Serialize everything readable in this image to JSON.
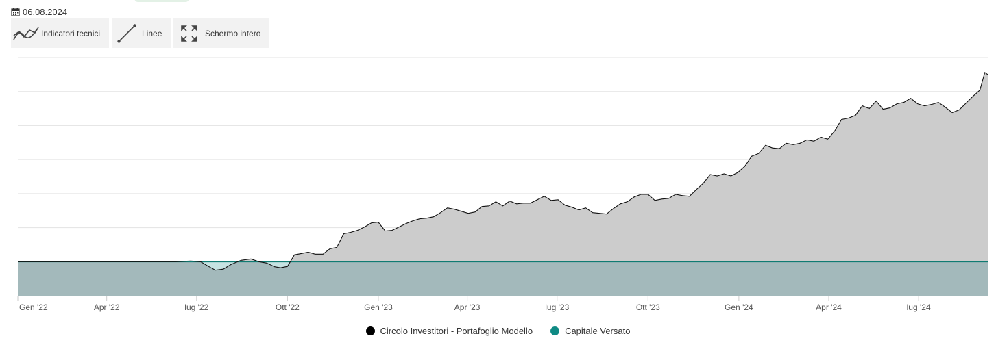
{
  "date": "06.08.2024",
  "toolbar": {
    "indicators_label": "Indicatori tecnici",
    "lines_label": "Linee",
    "fullscreen_label": "Schermo intero"
  },
  "colors": {
    "portfolio_line": "#111111",
    "portfolio_fill": "#cccccc",
    "capital_line": "#0f7b72",
    "capital_fill": "#a3b9bb",
    "below_fill": "#c6e3e2",
    "grid": "#e3e3e3"
  },
  "legend": {
    "portfolio_label": "Circolo Investitori - Portafoglio Modello",
    "portfolio_color": "#000000",
    "capital_label": "Capitale Versato",
    "capital_color": "#0f8a84"
  },
  "chart_data": {
    "type": "area",
    "x_ticks": [
      "Gen '22",
      "Apr '22",
      "lug '22",
      "Ott '22",
      "Gen '23",
      "Apr '23",
      "lug '23",
      "Ott '23",
      "Gen '24",
      "Apr '24",
      "lug '24"
    ],
    "grid": true,
    "y_tick_labels_visible": false,
    "ylim": [
      -1,
      6
    ],
    "legend_position": "bottom-center",
    "series": [
      {
        "name": "Circolo Investitori - Portafoglio Modello",
        "type": "area",
        "points": [
          [
            "2022-01-01",
            0
          ],
          [
            "2022-02-15",
            0
          ],
          [
            "2022-03-20",
            0
          ],
          [
            "2022-05-01",
            0
          ],
          [
            "2022-06-10",
            0
          ],
          [
            "2022-06-25",
            0.02
          ],
          [
            "2022-07-05",
            0.0
          ],
          [
            "2022-07-12",
            -0.12
          ],
          [
            "2022-07-20",
            -0.25
          ],
          [
            "2022-07-28",
            -0.22
          ],
          [
            "2022-08-05",
            -0.08
          ],
          [
            "2022-08-15",
            0.04
          ],
          [
            "2022-08-25",
            0.08
          ],
          [
            "2022-09-02",
            0.0
          ],
          [
            "2022-09-10",
            -0.04
          ],
          [
            "2022-09-18",
            -0.15
          ],
          [
            "2022-09-24",
            -0.18
          ],
          [
            "2022-10-01",
            -0.14
          ],
          [
            "2022-10-08",
            0.2
          ],
          [
            "2022-10-15",
            0.24
          ],
          [
            "2022-10-22",
            0.28
          ],
          [
            "2022-10-29",
            0.22
          ],
          [
            "2022-11-06",
            0.22
          ],
          [
            "2022-11-13",
            0.38
          ],
          [
            "2022-11-20",
            0.42
          ],
          [
            "2022-11-27",
            0.82
          ],
          [
            "2022-12-04",
            0.86
          ],
          [
            "2022-12-11",
            0.92
          ],
          [
            "2022-12-18",
            1.02
          ],
          [
            "2022-12-25",
            1.14
          ],
          [
            "2023-01-01",
            1.16
          ],
          [
            "2023-01-08",
            0.9
          ],
          [
            "2023-01-15",
            0.92
          ],
          [
            "2023-01-22",
            1.02
          ],
          [
            "2023-01-29",
            1.12
          ],
          [
            "2023-02-05",
            1.2
          ],
          [
            "2023-02-12",
            1.26
          ],
          [
            "2023-02-19",
            1.28
          ],
          [
            "2023-02-26",
            1.32
          ],
          [
            "2023-03-05",
            1.44
          ],
          [
            "2023-03-12",
            1.58
          ],
          [
            "2023-03-19",
            1.54
          ],
          [
            "2023-03-26",
            1.48
          ],
          [
            "2023-04-02",
            1.42
          ],
          [
            "2023-04-09",
            1.46
          ],
          [
            "2023-04-16",
            1.62
          ],
          [
            "2023-04-23",
            1.64
          ],
          [
            "2023-04-30",
            1.76
          ],
          [
            "2023-05-07",
            1.64
          ],
          [
            "2023-05-14",
            1.78
          ],
          [
            "2023-05-21",
            1.7
          ],
          [
            "2023-05-28",
            1.72
          ],
          [
            "2023-06-04",
            1.72
          ],
          [
            "2023-06-11",
            1.82
          ],
          [
            "2023-06-18",
            1.92
          ],
          [
            "2023-06-25",
            1.8
          ],
          [
            "2023-07-02",
            1.82
          ],
          [
            "2023-07-09",
            1.66
          ],
          [
            "2023-07-16",
            1.6
          ],
          [
            "2023-07-23",
            1.52
          ],
          [
            "2023-07-30",
            1.58
          ],
          [
            "2023-08-06",
            1.44
          ],
          [
            "2023-08-13",
            1.42
          ],
          [
            "2023-08-20",
            1.4
          ],
          [
            "2023-08-27",
            1.56
          ],
          [
            "2023-09-03",
            1.7
          ],
          [
            "2023-09-10",
            1.76
          ],
          [
            "2023-09-17",
            1.9
          ],
          [
            "2023-09-24",
            1.98
          ],
          [
            "2023-10-01",
            1.98
          ],
          [
            "2023-10-08",
            1.8
          ],
          [
            "2023-10-15",
            1.84
          ],
          [
            "2023-10-22",
            1.86
          ],
          [
            "2023-10-29",
            1.98
          ],
          [
            "2023-11-05",
            1.94
          ],
          [
            "2023-11-12",
            1.92
          ],
          [
            "2023-11-19",
            2.12
          ],
          [
            "2023-11-26",
            2.3
          ],
          [
            "2023-12-03",
            2.56
          ],
          [
            "2023-12-10",
            2.52
          ],
          [
            "2023-12-17",
            2.58
          ],
          [
            "2023-12-24",
            2.52
          ],
          [
            "2023-12-31",
            2.62
          ],
          [
            "2024-01-07",
            2.8
          ],
          [
            "2024-01-14",
            3.1
          ],
          [
            "2024-01-21",
            3.18
          ],
          [
            "2024-01-28",
            3.42
          ],
          [
            "2024-02-04",
            3.34
          ],
          [
            "2024-02-11",
            3.32
          ],
          [
            "2024-02-18",
            3.48
          ],
          [
            "2024-02-25",
            3.44
          ],
          [
            "2024-03-03",
            3.48
          ],
          [
            "2024-03-10",
            3.58
          ],
          [
            "2024-03-17",
            3.54
          ],
          [
            "2024-03-24",
            3.66
          ],
          [
            "2024-03-31",
            3.6
          ],
          [
            "2024-04-07",
            3.84
          ],
          [
            "2024-04-14",
            4.18
          ],
          [
            "2024-04-21",
            4.22
          ],
          [
            "2024-04-28",
            4.3
          ],
          [
            "2024-05-05",
            4.58
          ],
          [
            "2024-05-12",
            4.5
          ],
          [
            "2024-05-19",
            4.72
          ],
          [
            "2024-05-26",
            4.48
          ],
          [
            "2024-06-02",
            4.52
          ],
          [
            "2024-06-09",
            4.64
          ],
          [
            "2024-06-16",
            4.68
          ],
          [
            "2024-06-23",
            4.8
          ],
          [
            "2024-06-30",
            4.64
          ],
          [
            "2024-07-07",
            4.58
          ],
          [
            "2024-07-14",
            4.62
          ],
          [
            "2024-07-21",
            4.68
          ],
          [
            "2024-07-28",
            4.54
          ],
          [
            "2024-08-04",
            4.38
          ],
          [
            "2024-08-11",
            4.46
          ],
          [
            "2024-08-18",
            4.66
          ],
          [
            "2024-08-25",
            4.86
          ],
          [
            "2024-09-01",
            5.04
          ],
          [
            "2024-09-06",
            5.56
          ],
          [
            "2024-09-09",
            5.5
          ]
        ]
      },
      {
        "name": "Capitale Versato",
        "type": "area",
        "points": [
          [
            "2022-01-01",
            0
          ],
          [
            "2024-09-09",
            0
          ]
        ]
      }
    ]
  }
}
